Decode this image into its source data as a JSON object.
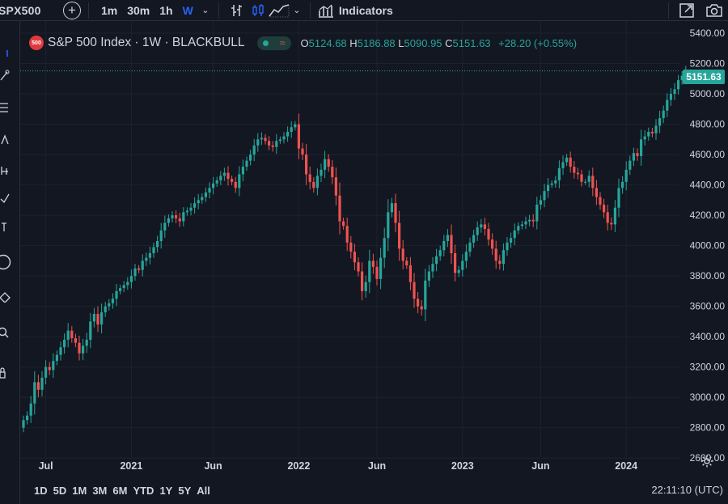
{
  "toolbar": {
    "symbol": "SPX500",
    "intervals": [
      "1m",
      "30m",
      "1h",
      "W"
    ],
    "active_interval": "W",
    "indicators_label": "Indicators"
  },
  "legend": {
    "badge_text": "500",
    "title": "S&P 500 Index · 1W · BLACKBULL",
    "approx_glyph": "≈",
    "open_label": "O",
    "open": "5124.68",
    "high_label": "H",
    "high": "5186.88",
    "low_label": "L",
    "low": "5090.95",
    "close_label": "C",
    "close": "5151.63",
    "change": "+28.20 (+0.55%)"
  },
  "last_price": "5151.63",
  "bottom": {
    "ranges": [
      "1D",
      "5D",
      "1M",
      "3M",
      "6M",
      "YTD",
      "1Y",
      "5Y",
      "All"
    ],
    "clock": "22:11:10 (UTC)"
  },
  "colors": {
    "up": "#26a69a",
    "down": "#ef5350",
    "background": "#131722",
    "grid": "#1e222d",
    "accent": "#2962ff"
  },
  "chart_data": {
    "type": "candlestick",
    "title": "S&P 500 Index · 1W · BLACKBULL",
    "y_tick_labels": [
      "2600.00",
      "2800.00",
      "3000.00",
      "3200.00",
      "3400.00",
      "3600.00",
      "3800.00",
      "4000.00",
      "4200.00",
      "4400.00",
      "4600.00",
      "4800.00",
      "5000.00",
      "5200.00",
      "5400.00"
    ],
    "ylim": [
      2500,
      5480
    ],
    "x_tick_labels": [
      "Jul",
      "2021",
      "Jun",
      "2022",
      "Jun",
      "2023",
      "Jun",
      "2024"
    ],
    "x_tick_index": [
      6,
      29,
      51,
      74,
      95,
      118,
      139,
      162
    ],
    "grid": true,
    "close_series": [
      2850,
      2880,
      2960,
      3100,
      3050,
      3130,
      3200,
      3180,
      3240,
      3280,
      3330,
      3380,
      3440,
      3390,
      3360,
      3290,
      3340,
      3380,
      3500,
      3550,
      3480,
      3560,
      3600,
      3620,
      3650,
      3700,
      3720,
      3740,
      3760,
      3800,
      3850,
      3840,
      3900,
      3920,
      3950,
      3990,
      4030,
      4100,
      4150,
      4180,
      4200,
      4180,
      4160,
      4220,
      4230,
      4250,
      4280,
      4300,
      4320,
      4350,
      4380,
      4410,
      4430,
      4460,
      4480,
      4440,
      4420,
      4380,
      4470,
      4520,
      4560,
      4600,
      4660,
      4700,
      4710,
      4690,
      4660,
      4650,
      4690,
      4700,
      4720,
      4750,
      4780,
      4800,
      4640,
      4600,
      4470,
      4420,
      4380,
      4460,
      4500,
      4570,
      4520,
      4450,
      4330,
      4160,
      4130,
      4020,
      3960,
      3890,
      3830,
      3700,
      3760,
      3900,
      3860,
      3780,
      3920,
      4050,
      4220,
      4280,
      4150,
      3980,
      3900,
      3870,
      3760,
      3650,
      3600,
      3580,
      3770,
      3830,
      3880,
      3930,
      3970,
      4030,
      4070,
      3950,
      3820,
      3840,
      3900,
      3960,
      4020,
      4070,
      4120,
      4140,
      4110,
      4040,
      3980,
      3900,
      3880,
      3970,
      4020,
      4050,
      4100,
      4130,
      4140,
      4160,
      4170,
      4160,
      4270,
      4300,
      4360,
      4400,
      4410,
      4430,
      4510,
      4550,
      4580,
      4520,
      4480,
      4470,
      4420,
      4420,
      4460,
      4380,
      4320,
      4270,
      4220,
      4150,
      4140,
      4250,
      4380,
      4420,
      4500,
      4560,
      4610,
      4590,
      4700,
      4720,
      4750,
      4740,
      4790,
      4840,
      4890,
      4960,
      5000,
      5030,
      5090,
      5120,
      5150
    ],
    "first_open": 2800,
    "last": 5151.63
  }
}
